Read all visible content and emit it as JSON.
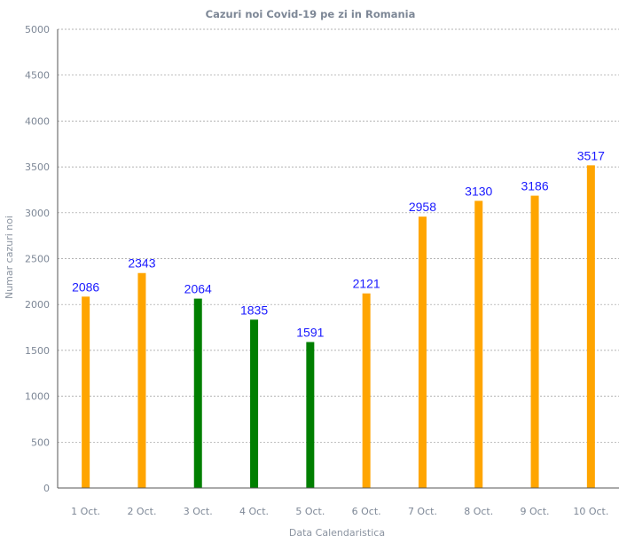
{
  "chart_data": {
    "type": "bar",
    "title": "Cazuri noi Covid-19 pe zi in Romania",
    "xlabel": "Data Calendaristica",
    "ylabel": "Numar cazuri noi",
    "categories": [
      "1 Oct.",
      "2 Oct.",
      "3 Oct.",
      "4 Oct.",
      "5 Oct.",
      "6 Oct.",
      "7 Oct.",
      "8 Oct.",
      "9 Oct.",
      "10 Oct."
    ],
    "values": [
      2086,
      2343,
      2064,
      1835,
      1591,
      2121,
      2958,
      3130,
      3186,
      3517
    ],
    "data_labels": [
      "2086",
      "2343",
      "2064",
      "1835",
      "1591",
      "2121",
      "2958",
      "3130",
      "3186",
      "3517"
    ],
    "bar_colors": [
      "#ffa500",
      "#ffa500",
      "#007f00",
      "#007f00",
      "#007f00",
      "#ffa500",
      "#ffa500",
      "#ffa500",
      "#ffa500",
      "#ffa500"
    ],
    "ylim": [
      0,
      5000
    ],
    "yticks": [
      0,
      500,
      1000,
      1500,
      2000,
      2500,
      3000,
      3500,
      4000,
      4500,
      5000
    ],
    "ytick_labels": [
      "0",
      "500",
      "1000",
      "1500",
      "2000",
      "2500",
      "3000",
      "3500",
      "4000",
      "4500",
      "5000"
    ],
    "grid": "horizontal-dashed",
    "legend": "none",
    "colors": {
      "data_label": "#1a1aff",
      "text": "#7d8796"
    }
  }
}
